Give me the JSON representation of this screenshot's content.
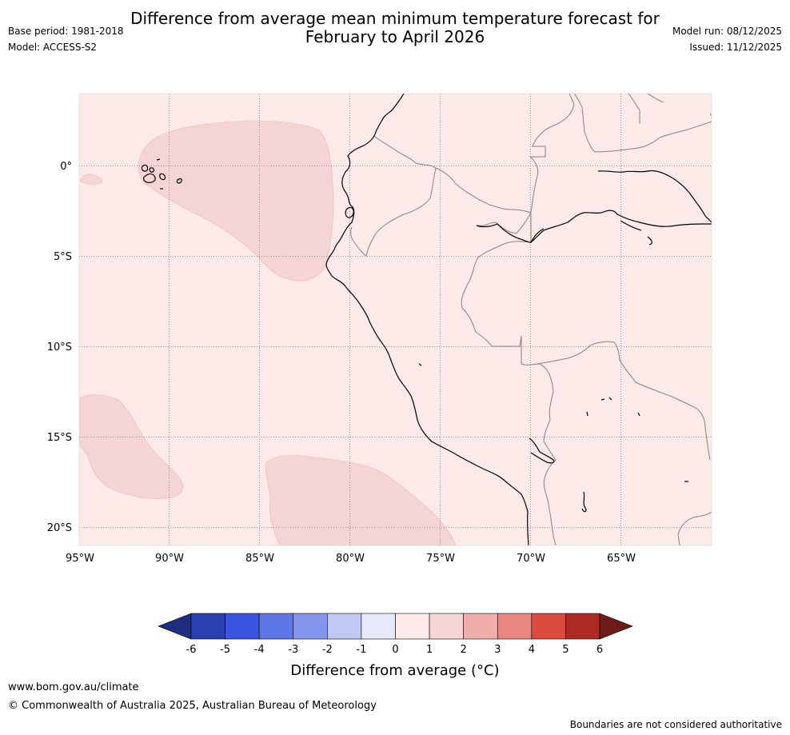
{
  "header": {
    "title_line1": "Difference from average mean minimum temperature forecast for",
    "title_line2": "February to April 2026",
    "base_period": "Base period: 1981-2018",
    "model": "Model: ACCESS-S2",
    "model_run": "Model run: 08/12/2025",
    "issued": "Issued: 11/12/2025"
  },
  "map": {
    "lat_labels": [
      "0°",
      "5°S",
      "10°S",
      "15°S",
      "20°S"
    ],
    "lon_labels": [
      "95°W",
      "90°W",
      "85°W",
      "80°W",
      "75°W",
      "70°W",
      "65°W"
    ],
    "colors": {
      "background_anomaly_0_1": "#fbeae8",
      "anomaly_1_2": "#f5d5d3",
      "coastline": "#000000",
      "borders": "#8a7f80",
      "gridlines": "#777777"
    }
  },
  "colorbar": {
    "ticks": [
      "-6",
      "-5",
      "-4",
      "-3",
      "-2",
      "-1",
      "0",
      "1",
      "2",
      "3",
      "4",
      "5",
      "6"
    ],
    "colors": [
      "#1f2d80",
      "#2a3fb0",
      "#3a55e0",
      "#5e77e6",
      "#8597ec",
      "#c0c8f4",
      "#e6e9fb",
      "#fbeae8",
      "#f5d5d3",
      "#efaea9",
      "#e8877f",
      "#dc4b3f",
      "#ad2b22",
      "#6e1c17"
    ],
    "label": "Difference from average (°C)"
  },
  "footer": {
    "website": "www.bom.gov.au/climate",
    "copyright": "© Commonwealth of Australia 2025, Australian Bureau of Meteorology",
    "disclaimer": "Boundaries are not considered authoritative"
  }
}
